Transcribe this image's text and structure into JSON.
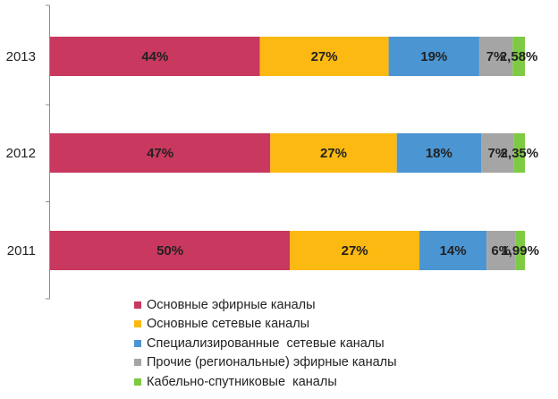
{
  "chart_data": {
    "type": "bar",
    "orientation": "horizontal",
    "stacked": true,
    "categories": [
      "2013",
      "2012",
      "2011"
    ],
    "series": [
      {
        "name": "Основные эфирные каналы",
        "color": "#c8385f",
        "values": [
          44,
          47,
          50
        ],
        "labels": [
          "44%",
          "47%",
          "50%"
        ]
      },
      {
        "name": "Основные сетевые каналы",
        "color": "#fbb911",
        "values": [
          27,
          27,
          27
        ],
        "labels": [
          "27%",
          "27%",
          "27%"
        ]
      },
      {
        "name": "Специализированные  сетевые каналы",
        "color": "#4b95d3",
        "values": [
          19,
          18,
          14
        ],
        "labels": [
          "19%",
          "18%",
          "14%"
        ]
      },
      {
        "name": "Прочие (региональные) эфирные каналы",
        "color": "#a5a5a5",
        "values": [
          7,
          7,
          6
        ],
        "labels": [
          "7%",
          "7%",
          "6%"
        ]
      },
      {
        "name": "Кабельно-спутниковые  каналы",
        "color": "#7ecb43",
        "values": [
          2.58,
          2.35,
          1.99
        ],
        "labels": [
          "2,58%",
          "2,35%",
          "1,99%"
        ]
      }
    ],
    "xlim": [
      0,
      100
    ],
    "grid": false,
    "legend_position": "bottom"
  }
}
